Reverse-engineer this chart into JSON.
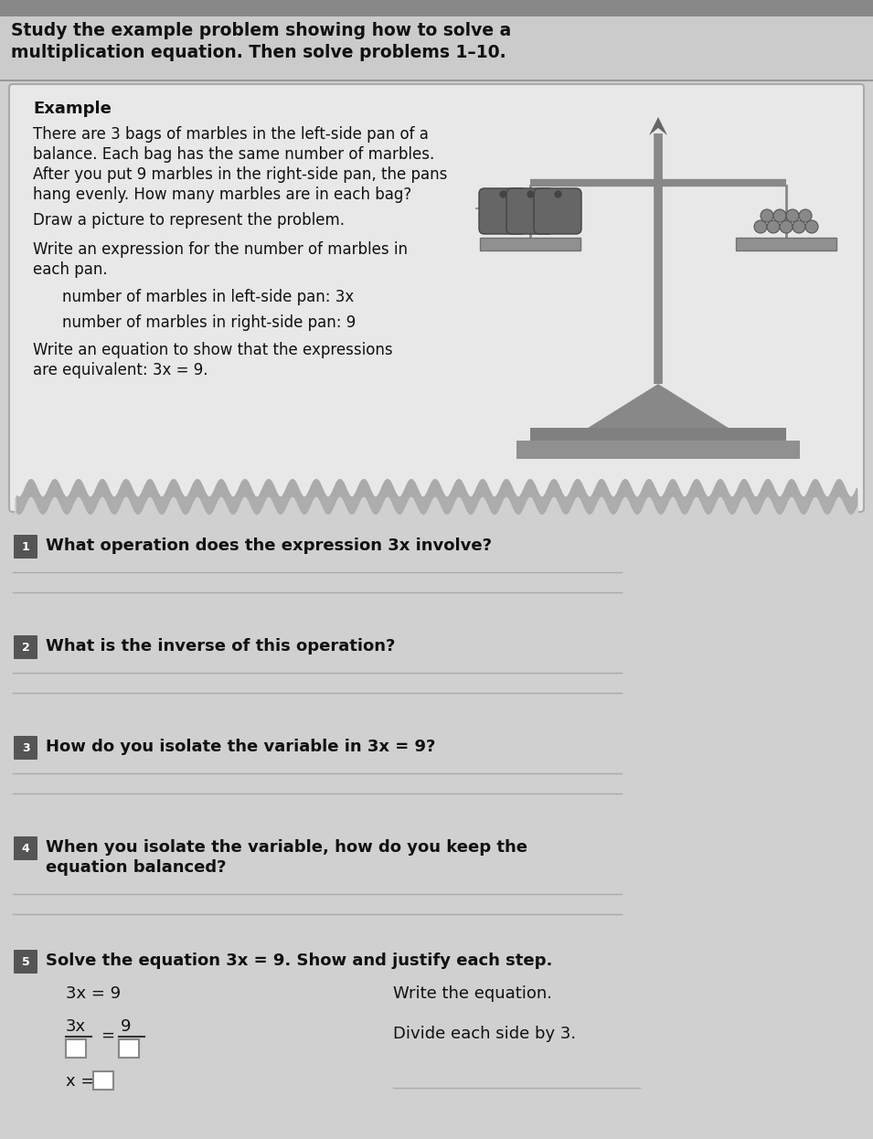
{
  "page_bg": "#d0d0d0",
  "header_bg": "#c8c8c8",
  "box_bg": "#e8e8e8",
  "box_border": "#aaaaaa",
  "text_dark": "#111111",
  "text_mid": "#333333",
  "badge_bg": "#555555",
  "badge_text": "#ffffff",
  "line_color": "#aaaaaa",
  "scale_color": "#888888",
  "scale_dark": "#666666",
  "wave_color": "#999999",
  "white": "#ffffff",
  "header_line": "Study the example problem showing how to solve a",
  "header_line2": "multiplication equation. Then solve problems 1–10.",
  "ex_label": "Example",
  "ex_body1": "There are 3 bags of marbles in the left-side pan of a",
  "ex_body2": "balance. Each bag has the same number of marbles.",
  "ex_body3": "After you put 9 marbles in the right-side pan, the pans",
  "ex_body4": "hang evenly. How many marbles are in each bag?",
  "ex_draw": "Draw a picture to represent the problem.",
  "ex_write": "Write an expression for the number of marbles in",
  "ex_write2": "each pan.",
  "ex_left": "number of marbles in left-side pan: 3x",
  "ex_right": "number of marbles in right-side pan: 9",
  "ex_eq1": "Write an equation to show that the expressions",
  "ex_eq2": "are equivalent: 3x = 9.",
  "q1": "What operation does the expression 3x involve?",
  "q2": "What is the inverse of this operation?",
  "q3": "How do you isolate the variable in 3x = 9?",
  "q4a": "When you isolate the variable, how do you keep the",
  "q4b": "equation balanced?",
  "q5": "Solve the equation 3x = 9. Show and justify each step.",
  "s1l": "3x = 9",
  "s1r": "Write the equation.",
  "s2r": "Divide each side by 3.",
  "s3l": "x =",
  "figw": 9.55,
  "figh": 12.46
}
